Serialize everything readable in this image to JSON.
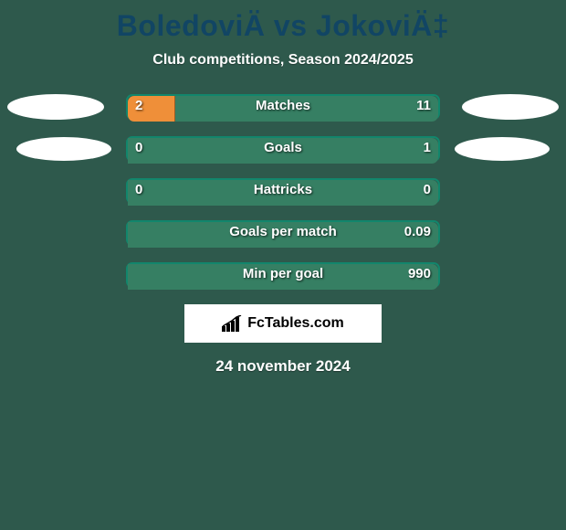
{
  "colors": {
    "background": "#2e594c",
    "title": "#114564",
    "subtitle_text": "#ffffff",
    "bar_left": "#ef8f39",
    "bar_right": "#367f63",
    "bar_neutral": "#367f63",
    "bar_border": "#12866c",
    "value_text": "#ffffff",
    "photo_bg": "#ffffff",
    "brand_bg": "#ffffff",
    "brand_text": "#000000",
    "date_text": "#ffffff"
  },
  "title": "BoledoviÄ vs JokoviÄ‡",
  "subtitle": "Club competitions, Season 2024/2025",
  "bar": {
    "track_width": 344,
    "track_height": 28,
    "border_radius": 7,
    "border_width": 2
  },
  "typography": {
    "title_fontsize": 32,
    "subtitle_fontsize": 16,
    "metric_fontsize": 15,
    "value_fontsize": 15,
    "date_fontsize": 17
  },
  "rows": [
    {
      "label": "Matches",
      "left": "2",
      "right": "11",
      "left_pct": 15.4
    },
    {
      "label": "Goals",
      "left": "0",
      "right": "1",
      "left_pct": 0.0
    },
    {
      "label": "Hattricks",
      "left": "0",
      "right": "0",
      "left_pct": 0.0,
      "neutral": true
    },
    {
      "label": "Goals per match",
      "left": "",
      "right": "0.09",
      "left_pct": 0.0
    },
    {
      "label": "Min per goal",
      "left": "",
      "right": "990",
      "left_pct": 0.0
    }
  ],
  "brand": "FcTables.com",
  "date": "24 november 2024"
}
